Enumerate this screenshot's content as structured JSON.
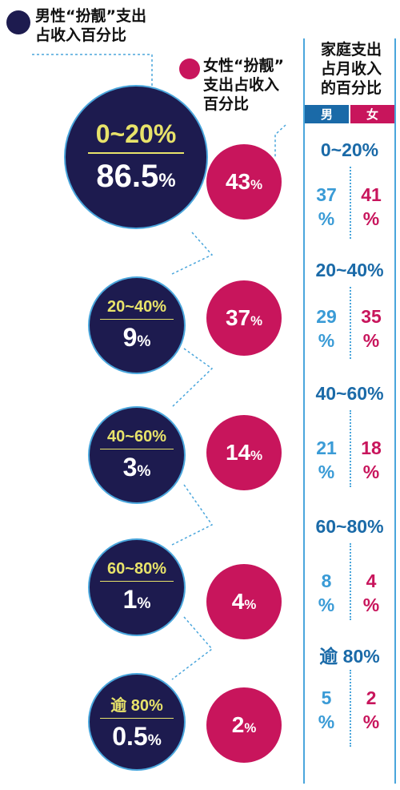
{
  "legend": {
    "male_title": "男性“扮靓”支出\n占收入百分比",
    "female_title": "女性“扮靓”\n支出占收入\n百分比",
    "colors": {
      "male": "#1d1b4f",
      "female": "#c8155c",
      "accent": "#e8e36a",
      "line": "#4aa6dc"
    }
  },
  "chart_data": {
    "type": "table",
    "categories": [
      "0~20%",
      "20~40%",
      "40~60%",
      "60~80%",
      "逾 80%"
    ],
    "series": [
      {
        "name": "男性“扮靓”支出占收入百分比",
        "values": [
          "86.5%",
          "9%",
          "3%",
          "1%",
          "0.5%"
        ]
      },
      {
        "name": "女性“扮靓”支出占收入百分比",
        "values": [
          "43%",
          "37%",
          "14%",
          "4%",
          "2%"
        ]
      }
    ]
  },
  "table": {
    "title": "家庭支出\n占月收入\n的百分比",
    "header_male": "男",
    "header_female": "女",
    "rows": [
      {
        "range": "0~20%",
        "male": "37\n%",
        "female": "41\n%"
      },
      {
        "range": "20~40%",
        "male": "29\n%",
        "female": "35\n%"
      },
      {
        "range": "40~60%",
        "male": "21\n%",
        "female": "18\n%"
      },
      {
        "range": "60~80%",
        "male": "8\n%",
        "female": "4\n%"
      },
      {
        "range": "逾 80%",
        "male": "5\n%",
        "female": "2\n%"
      }
    ]
  }
}
